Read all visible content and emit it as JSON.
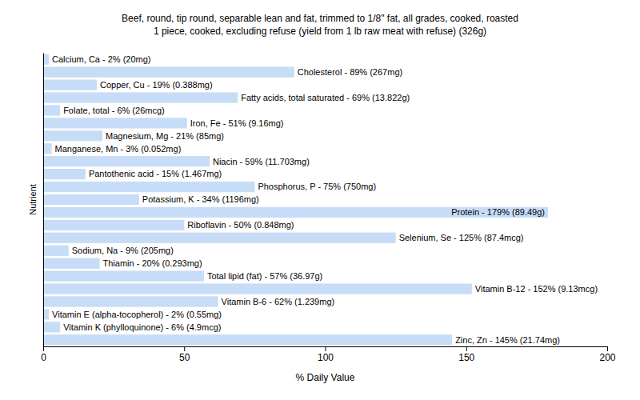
{
  "chart_data": {
    "type": "bar",
    "orientation": "horizontal",
    "title": "Beef, round, tip round, separable lean and fat, trimmed to 1/8\" fat, all grades, cooked, roasted",
    "subtitle": "1 piece, cooked, excluding refuse (yield from 1 lb raw meat with refuse) (326g)",
    "x_label": "% Daily Value",
    "y_label": "Nutrient",
    "categories": [
      "Calcium, Ca - 2% (20mg)",
      "Cholesterol - 89% (267mg)",
      "Copper, Cu - 19% (0.388mg)",
      "Fatty acids, total saturated - 69% (13.822g)",
      "Folate, total - 6% (26mcg)",
      "Iron, Fe - 51% (9.16mg)",
      "Magnesium, Mg - 21% (85mg)",
      "Manganese, Mn - 3% (0.052mg)",
      "Niacin - 59% (11.703mg)",
      "Pantothenic acid - 15% (1.467mg)",
      "Phosphorus, P - 75% (750mg)",
      "Potassium, K - 34% (1196mg)",
      "Protein - 179% (89.49g)",
      "Riboflavin - 50% (0.848mg)",
      "Selenium, Se - 125% (87.4mcg)",
      "Sodium, Na - 9% (205mg)",
      "Thiamin - 20% (0.293mg)",
      "Total lipid (fat) - 57% (36.97g)",
      "Vitamin B-12 - 152% (9.13mcg)",
      "Vitamin B-6 - 62% (1.239mg)",
      "Vitamin E (alpha-tocopherol) - 2% (0.55mg)",
      "Vitamin K (phylloquinone) - 6% (4.9mcg)",
      "Zinc, Zn - 145% (21.74mg)"
    ],
    "values": [
      2,
      89,
      19,
      69,
      6,
      51,
      21,
      3,
      59,
      15,
      75,
      34,
      179,
      50,
      125,
      9,
      20,
      57,
      152,
      62,
      2,
      6,
      145
    ],
    "color": "#c7dcf6",
    "xlim": [
      0,
      200
    ],
    "xticks": [
      0,
      50,
      100,
      150,
      200
    ],
    "tick_labels": "x",
    "grid": false
  }
}
